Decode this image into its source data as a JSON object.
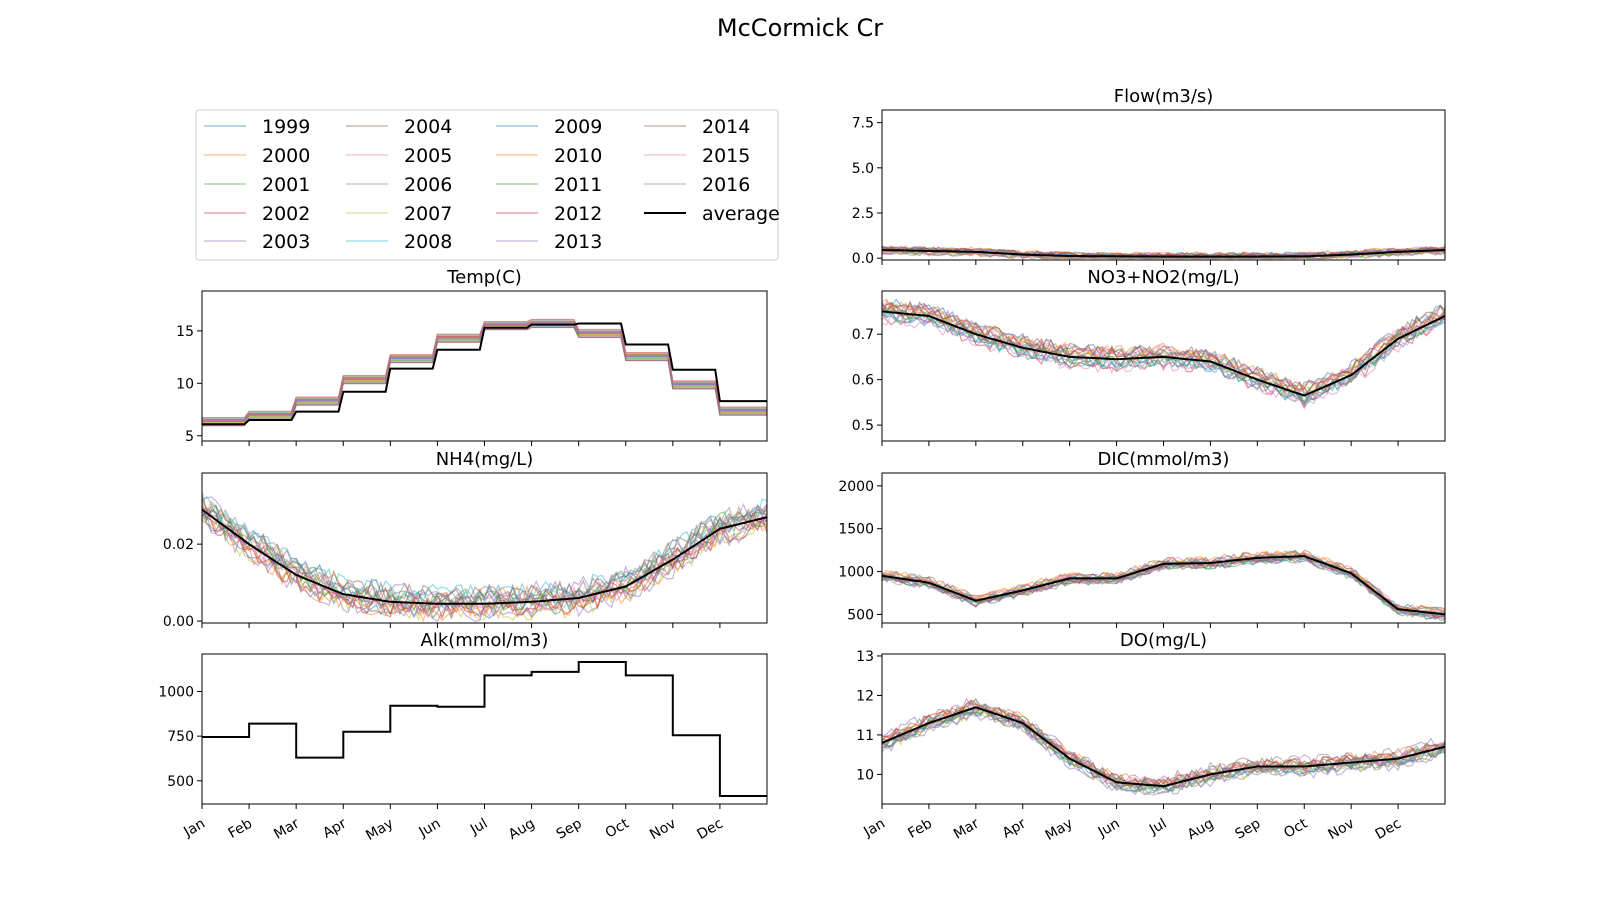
{
  "figure": {
    "title": "McCormick Cr",
    "months": [
      "Jan",
      "Feb",
      "Mar",
      "Apr",
      "May",
      "Jun",
      "Jul",
      "Aug",
      "Sep",
      "Oct",
      "Nov",
      "Dec"
    ]
  },
  "legend": {
    "entries": [
      {
        "label": "1999",
        "color": "#1f77b4"
      },
      {
        "label": "2000",
        "color": "#ff7f0e"
      },
      {
        "label": "2001",
        "color": "#2ca02c"
      },
      {
        "label": "2002",
        "color": "#d62728"
      },
      {
        "label": "2003",
        "color": "#9467bd"
      },
      {
        "label": "2004",
        "color": "#8c564b"
      },
      {
        "label": "2005",
        "color": "#e377c2"
      },
      {
        "label": "2006",
        "color": "#7f7f7f"
      },
      {
        "label": "2007",
        "color": "#bcbd22"
      },
      {
        "label": "2008",
        "color": "#17becf"
      },
      {
        "label": "2009",
        "color": "#1f77b4"
      },
      {
        "label": "2010",
        "color": "#ff7f0e"
      },
      {
        "label": "2011",
        "color": "#2ca02c"
      },
      {
        "label": "2012",
        "color": "#d62728"
      },
      {
        "label": "2013",
        "color": "#9467bd"
      },
      {
        "label": "2014",
        "color": "#8c564b"
      },
      {
        "label": "2015",
        "color": "#e377c2"
      },
      {
        "label": "2016",
        "color": "#7f7f7f"
      },
      {
        "label": "average",
        "color": "#000000"
      }
    ]
  },
  "chart_data": [
    {
      "id": "flow",
      "type": "line",
      "title": "Flow(m3/s)",
      "ylim": [
        -0.1,
        8.2
      ],
      "yticks": [
        0.0,
        2.5,
        5.0,
        7.5
      ],
      "ytick_labels": [
        "0.0",
        "2.5",
        "5.0",
        "7.5"
      ],
      "show_x_labels": false,
      "x_months": [
        0,
        1,
        2,
        3,
        4,
        5,
        6,
        7,
        8,
        9,
        10,
        11,
        12
      ],
      "average": [
        0.45,
        0.4,
        0.35,
        0.2,
        0.12,
        0.1,
        0.09,
        0.09,
        0.09,
        0.1,
        0.2,
        0.35,
        0.45
      ],
      "year_spread": 0.3
    },
    {
      "id": "temp",
      "type": "line",
      "title": "Temp(C)",
      "ylim": [
        4.5,
        18.8
      ],
      "yticks": [
        5,
        10,
        15
      ],
      "ytick_labels": [
        "5",
        "10",
        "15"
      ],
      "show_x_labels": false,
      "x_months": [
        0,
        1,
        2,
        3,
        4,
        5,
        6,
        7,
        8,
        9,
        10,
        11,
        12
      ],
      "average": [
        6.1,
        6.5,
        7.3,
        9.2,
        11.4,
        13.2,
        15.3,
        15.6,
        15.7,
        13.7,
        11.3,
        8.3,
        6.3
      ],
      "year_spread": 0.9
    },
    {
      "id": "no3",
      "type": "line",
      "title": "NO3+NO2(mg/L)",
      "ylim": [
        0.465,
        0.795
      ],
      "yticks": [
        0.5,
        0.6,
        0.7
      ],
      "ytick_labels": [
        "0.5",
        "0.6",
        "0.7"
      ],
      "show_x_labels": false,
      "x_months": [
        0,
        1,
        2,
        3,
        4,
        5,
        6,
        7,
        8,
        9,
        10,
        11,
        12
      ],
      "average": [
        0.75,
        0.74,
        0.7,
        0.67,
        0.65,
        0.645,
        0.65,
        0.64,
        0.6,
        0.565,
        0.61,
        0.69,
        0.74
      ],
      "year_spread": 0.035
    },
    {
      "id": "nh4",
      "type": "line",
      "title": "NH4(mg/L)",
      "ylim": [
        -0.0005,
        0.0385
      ],
      "yticks": [
        0.0,
        0.02
      ],
      "ytick_labels": [
        "0.00",
        "0.02"
      ],
      "show_x_labels": false,
      "x_months": [
        0,
        1,
        2,
        3,
        4,
        5,
        6,
        7,
        8,
        9,
        10,
        11,
        12
      ],
      "average": [
        0.029,
        0.02,
        0.012,
        0.007,
        0.005,
        0.0045,
        0.0045,
        0.005,
        0.006,
        0.009,
        0.016,
        0.024,
        0.027
      ],
      "year_spread": 0.006
    },
    {
      "id": "dic",
      "type": "line",
      "title": "DIC(mmol/m3)",
      "ylim": [
        400,
        2150
      ],
      "yticks": [
        500,
        1000,
        1500,
        2000
      ],
      "ytick_labels": [
        "500",
        "1000",
        "1500",
        "2000"
      ],
      "show_x_labels": false,
      "x_months": [
        0,
        1,
        2,
        3,
        4,
        5,
        6,
        7,
        8,
        9,
        10,
        11,
        12
      ],
      "average": [
        950,
        870,
        660,
        780,
        920,
        920,
        1090,
        1100,
        1160,
        1180,
        980,
        560,
        500
      ],
      "year_spread": 100
    },
    {
      "id": "alk",
      "type": "step",
      "title": "Alk(mmol/m3)",
      "ylim": [
        370,
        1210
      ],
      "yticks": [
        500,
        750,
        1000
      ],
      "ytick_labels": [
        "500",
        "750",
        "1000"
      ],
      "show_x_labels": true,
      "step_values": [
        745,
        820,
        630,
        775,
        920,
        915,
        1090,
        1110,
        1165,
        1090,
        755,
        415
      ]
    },
    {
      "id": "do",
      "type": "line",
      "title": "DO(mg/L)",
      "ylim": [
        9.25,
        13.05
      ],
      "yticks": [
        10,
        11,
        12,
        13
      ],
      "ytick_labels": [
        "10",
        "11",
        "12",
        "13"
      ],
      "show_x_labels": true,
      "x_months": [
        0,
        1,
        2,
        3,
        4,
        5,
        6,
        7,
        8,
        9,
        10,
        11,
        12
      ],
      "average": [
        10.8,
        11.3,
        11.7,
        11.3,
        10.4,
        9.8,
        9.7,
        10.0,
        10.2,
        10.2,
        10.3,
        10.4,
        10.7
      ],
      "year_spread": 0.35
    }
  ]
}
